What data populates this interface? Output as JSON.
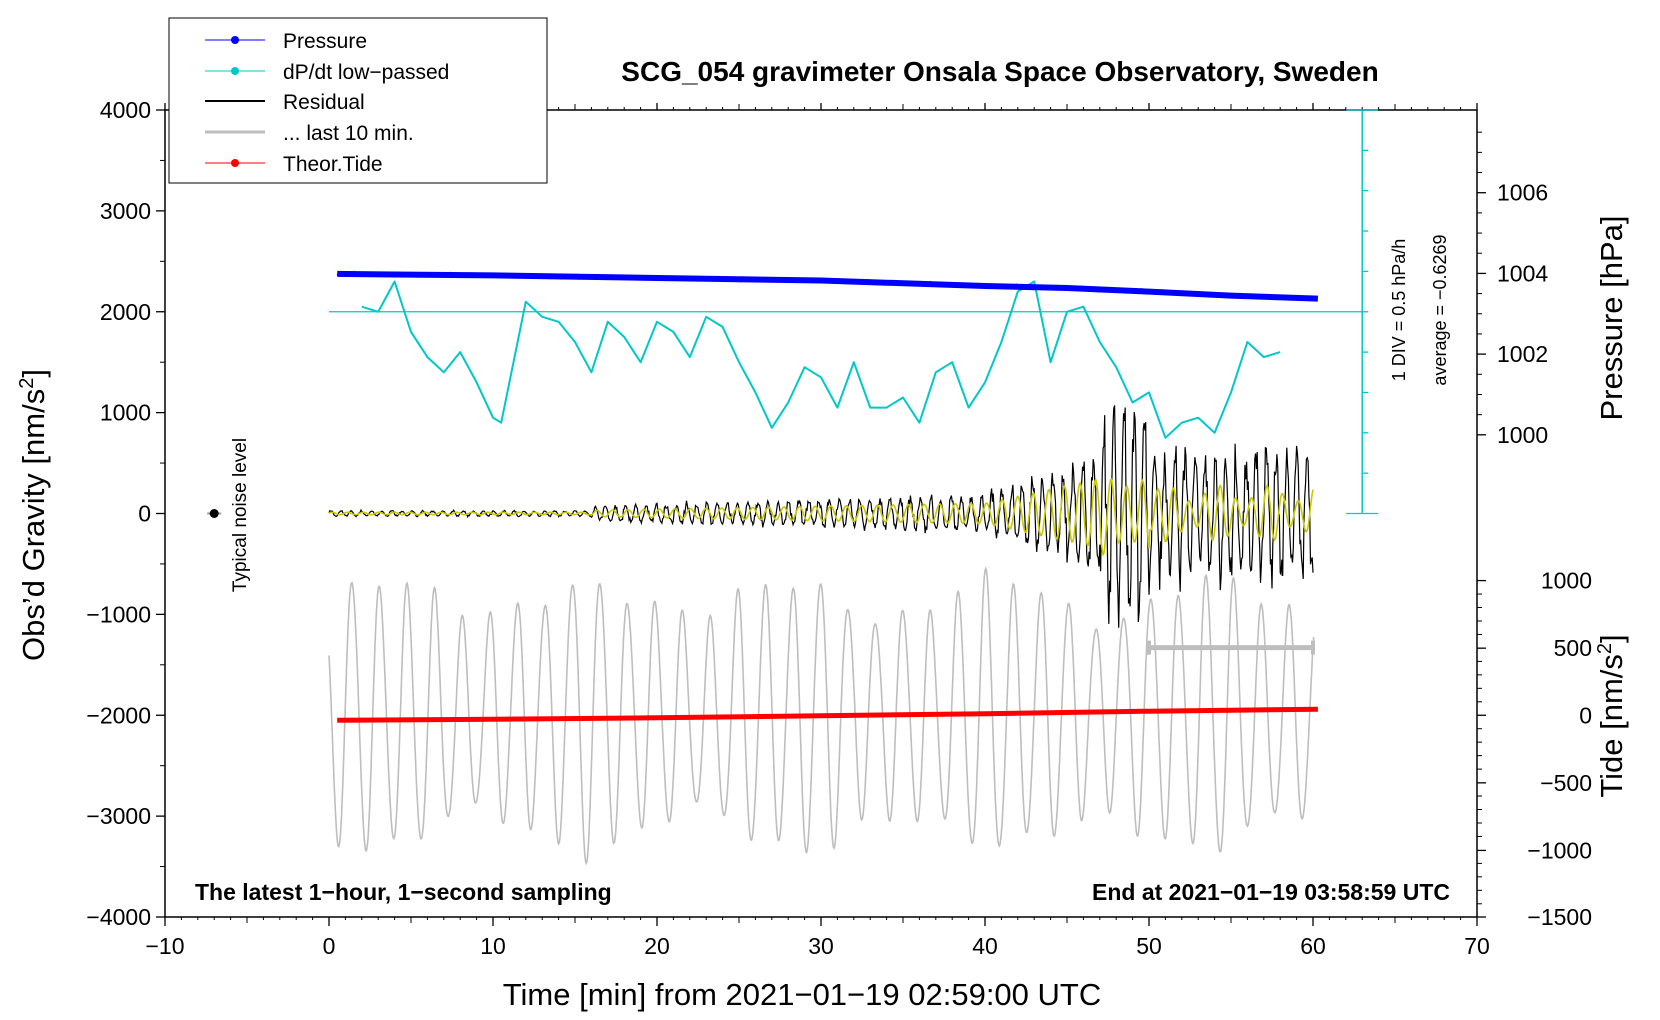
{
  "chart_data": {
    "type": "line",
    "title": "SCG_054 gravimeter Onsala Space Observatory, Sweden",
    "xlabel": "Time [min] from 2021−01−19 02:59:00 UTC",
    "ylabel_left": "Obs’d Gravity [nm/s",
    "ylabel_left_sup": "2",
    "ylabel_left_end": "]",
    "ylabel_pressure": "Pressure [hPa]",
    "ylabel_tide": "Tide [nm/s",
    "ylabel_tide_sup": "2",
    "ylabel_tide_end": "]",
    "xlim": [
      -10,
      70
    ],
    "ylim": [
      -4000,
      4000
    ],
    "x_ticks": [
      -10,
      0,
      10,
      20,
      30,
      40,
      50,
      60,
      70
    ],
    "x_tick_labels": [
      "−10",
      "0",
      "10",
      "20",
      "30",
      "40",
      "50",
      "60",
      "70"
    ],
    "y_ticks": [
      4000,
      3000,
      2000,
      1000,
      0,
      -1000,
      -2000,
      -3000,
      -4000
    ],
    "y_tick_labels": [
      "4000",
      "3000",
      "2000",
      "1000",
      "0",
      "−1000",
      "−2000",
      "−3000",
      "−4000"
    ],
    "pressure_axis": {
      "ticks": [
        1006,
        1004,
        1002,
        1000
      ],
      "tick_labels": [
        "1006",
        "1004",
        "1002",
        "1000"
      ],
      "gravity_equiv": [
        3180,
        2380,
        1580,
        780
      ]
    },
    "tide_axis": {
      "ticks": [
        1000,
        500,
        0,
        -500,
        -1000,
        -1500
      ],
      "tick_labels": [
        "1000",
        "500",
        "0",
        "−500",
        "−1000",
        "−1500"
      ],
      "gravity_equiv": [
        -665,
        -1335,
        -2000,
        -2670,
        -3340,
        -4000
      ]
    },
    "legend": [
      {
        "label": "Pressure",
        "color": "#0000ff",
        "style": "line-dot"
      },
      {
        "label": "dP/dt low−passed",
        "color": "#00c8c8",
        "style": "line-dot"
      },
      {
        "label": "Residual",
        "color": "#000000",
        "style": "line"
      },
      {
        "label": "... last 10 min.",
        "color": "#bebebe",
        "style": "line"
      },
      {
        "label": "Theor.Tide",
        "color": "#ff0000",
        "style": "line-dot"
      }
    ],
    "series": [
      {
        "name": "Pressure",
        "color": "#0000ff",
        "x": [
          0.5,
          10,
          20,
          30,
          40,
          45,
          50,
          55,
          60.3
        ],
        "y": [
          2375,
          2360,
          2335,
          2310,
          2255,
          2235,
          2200,
          2160,
          2130
        ]
      },
      {
        "name": "dP/dt low−passed",
        "color": "#00c8c8",
        "x": [
          2,
          3,
          4,
          5,
          6,
          7,
          8,
          9,
          10,
          10.5,
          11,
          12,
          13,
          14,
          15,
          16,
          17,
          18,
          19,
          20,
          21,
          22,
          23,
          24,
          25,
          26,
          27,
          28,
          29,
          30,
          31,
          32,
          33,
          34,
          35,
          36,
          37,
          38,
          39,
          40,
          41,
          42,
          43,
          44,
          45,
          46,
          47,
          48,
          49,
          50,
          51,
          52,
          53,
          54,
          55,
          56,
          57,
          58
        ],
        "y": [
          2050,
          2000,
          2300,
          1800,
          1550,
          1400,
          1600,
          1300,
          950,
          900,
          1300,
          2100,
          1950,
          1900,
          1700,
          1400,
          1900,
          1750,
          1500,
          1900,
          1800,
          1550,
          1950,
          1850,
          1500,
          1200,
          850,
          1100,
          1450,
          1350,
          1050,
          1500,
          1050,
          1050,
          1150,
          900,
          1400,
          1500,
          1050,
          1300,
          1700,
          2200,
          2300,
          1500,
          2000,
          2050,
          1700,
          1450,
          1100,
          1200,
          750,
          900,
          950,
          800,
          1200,
          1700,
          1550,
          1600
        ]
      },
      {
        "name": "Theor.Tide",
        "color": "#ff0000",
        "x": [
          0.5,
          10,
          20,
          30,
          40,
          50,
          60.3
        ],
        "y": [
          -2050,
          -2040,
          -2025,
          -2005,
          -1985,
          -1960,
          -1940
        ]
      }
    ],
    "zero_reference": 2000,
    "pressure_rate_bar": {
      "label_1": "1 DIV = 0.5 hPa/h",
      "label_2": "average = −0.6269",
      "divisions": 10,
      "x": 63
    },
    "last10_bar": {
      "x_start": 50,
      "x_end": 60,
      "y": -1330
    },
    "noise_level": {
      "label": "Typical noise level",
      "x": -7,
      "y": 0
    },
    "footer_left": "The latest 1−hour, 1−second sampling",
    "footer_right": "End at 2021−01−19 03:58:59 UTC"
  },
  "colors": {
    "pressure": "#0000ff",
    "dpdt": "#00c8c8",
    "residual": "#000000",
    "last10": "#bebebe",
    "tide": "#ff0000",
    "filtered": "#c8c800"
  }
}
